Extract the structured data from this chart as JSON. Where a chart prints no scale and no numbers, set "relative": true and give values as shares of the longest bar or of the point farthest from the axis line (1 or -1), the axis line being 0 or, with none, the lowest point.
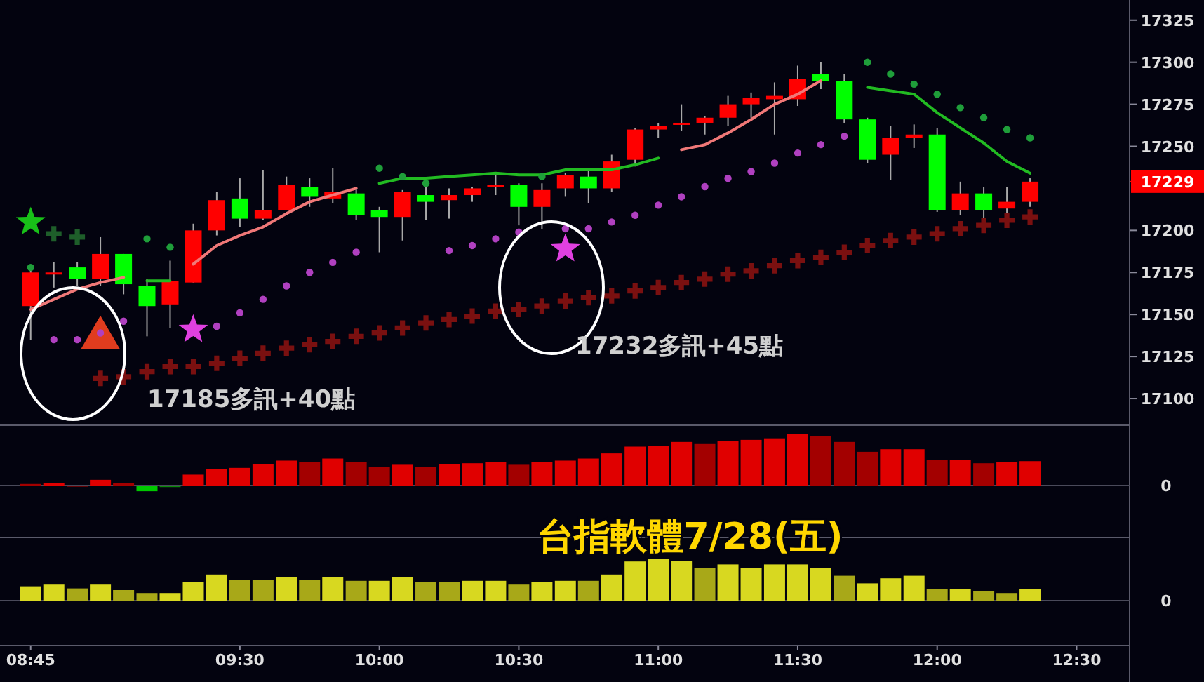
{
  "chart_data": [
    {
      "type": "candlestick",
      "tick_labels": "y",
      "x": [
        8.75,
        8.833,
        8.917,
        9,
        9.083,
        9.167,
        9.25,
        9.333,
        9.417,
        9.5,
        9.583,
        9.667,
        9.75,
        9.833,
        9.917,
        10,
        10.083,
        10.167,
        10.25,
        10.333,
        10.417,
        10.5,
        10.583,
        10.667,
        10.75,
        10.833,
        10.917,
        11,
        11.083,
        11.167,
        11.25,
        11.333,
        11.417,
        11.5,
        11.583,
        11.667,
        11.75,
        11.833,
        11.917,
        12,
        12.083,
        12.167,
        12.25,
        12.333
      ],
      "ohlc": [
        [
          17155,
          17177,
          17135,
          17175
        ],
        [
          17174,
          17181,
          17166,
          17175
        ],
        [
          17178,
          17181,
          17167,
          17171
        ],
        [
          17171,
          17196,
          17167,
          17186
        ],
        [
          17186,
          17186,
          17162,
          17168
        ],
        [
          17167,
          17171,
          17137,
          17155
        ],
        [
          17156,
          17182,
          17142,
          17170
        ],
        [
          17169,
          17204,
          17169,
          17200
        ],
        [
          17200,
          17223,
          17197,
          17218
        ],
        [
          17219,
          17231,
          17202,
          17207
        ],
        [
          17207,
          17236,
          17206,
          17212
        ],
        [
          17212,
          17232,
          17212,
          17227
        ],
        [
          17226,
          17231,
          17214,
          17220
        ],
        [
          17219,
          17237,
          17216,
          17223
        ],
        [
          17222,
          17225,
          17206,
          17209
        ],
        [
          17212,
          17214,
          17187,
          17208
        ],
        [
          17208,
          17224,
          17194,
          17223
        ],
        [
          17221,
          17228,
          17206,
          17217
        ],
        [
          17218,
          17225,
          17207,
          17221
        ],
        [
          17221,
          17226,
          17217,
          17225
        ],
        [
          17226,
          17233,
          17221,
          17227
        ],
        [
          17227,
          17228,
          17203,
          17214
        ],
        [
          17214,
          17228,
          17201,
          17224
        ],
        [
          17225,
          17234,
          17220,
          17233
        ],
        [
          17232,
          17237,
          17216,
          17225
        ],
        [
          17225,
          17245,
          17223,
          17241
        ],
        [
          17242,
          17261,
          17238,
          17260
        ],
        [
          17260,
          17264,
          17255,
          17262
        ],
        [
          17263,
          17275,
          17259,
          17264
        ],
        [
          17264,
          17268,
          17257,
          17267
        ],
        [
          17267,
          17280,
          17262,
          17275
        ],
        [
          17275,
          17282,
          17267,
          17279
        ],
        [
          17278,
          17288,
          17257,
          17280
        ],
        [
          17278,
          17298,
          17274,
          17290
        ],
        [
          17293,
          17300,
          17284,
          17289
        ],
        [
          17289,
          17293,
          17264,
          17266
        ],
        [
          17266,
          17267,
          17240,
          17242
        ],
        [
          17245,
          17262,
          17230,
          17255
        ],
        [
          17255,
          17263,
          17249,
          17257
        ],
        [
          17257,
          17261,
          17211,
          17212
        ],
        [
          17212,
          17229,
          17209,
          17222
        ],
        [
          17222,
          17226,
          17207,
          17212
        ],
        [
          17213,
          17226,
          17209,
          17217
        ],
        [
          17217,
          17231,
          17214,
          17229
        ]
      ],
      "colors": [
        "#ff0000",
        "#ff0000",
        "#00ff00",
        "#ff0000",
        "#00ff00",
        "#00ff00",
        "#ff0000",
        "#ff0000",
        "#ff0000",
        "#00ff00",
        "#ff0000",
        "#ff0000",
        "#00ff00",
        "#ff0000",
        "#00ff00",
        "#00ff00",
        "#ff0000",
        "#00ff00",
        "#ff0000",
        "#ff0000",
        "#ff0000",
        "#00ff00",
        "#ff0000",
        "#ff0000",
        "#00ff00",
        "#ff0000",
        "#ff0000",
        "#ff0000",
        "#ff0000",
        "#ff0000",
        "#ff0000",
        "#ff0000",
        "#ff0000",
        "#ff0000",
        "#00ff00",
        "#00ff00",
        "#00ff00",
        "#ff0000",
        "#ff0000",
        "#00ff00",
        "#ff0000",
        "#00ff00",
        "#ff0000",
        "#ff0000"
      ],
      "series": [
        {
          "type": "line",
          "color": "#f07878",
          "values": [
            17153,
            17159,
            17165,
            17169,
            17172,
            null,
            null,
            17180,
            17191,
            17197,
            17202,
            17210,
            17217,
            17221,
            17225,
            null,
            null,
            null,
            null,
            null,
            null,
            null,
            null,
            null,
            null,
            null,
            null,
            null,
            17248,
            17251,
            17258,
            17266,
            17275,
            17281,
            17289,
            null,
            null,
            null,
            null,
            null,
            null,
            null,
            null,
            null
          ]
        },
        {
          "type": "line",
          "color": "#22bb22",
          "values": [
            null,
            null,
            null,
            null,
            null,
            17170,
            17170,
            null,
            null,
            null,
            null,
            null,
            null,
            null,
            null,
            17228,
            17231,
            17231,
            17232,
            17233,
            17234,
            17233,
            17233,
            17236,
            17236,
            17236,
            17239,
            17243,
            null,
            null,
            null,
            null,
            null,
            null,
            null,
            null,
            17285,
            17283,
            17281,
            17270,
            17261,
            17252,
            17241,
            17234
          ]
        },
        {
          "type": "scatter",
          "marker": "triangle",
          "color": "#e03c1e",
          "x": [
            9
          ],
          "values": [
            17136
          ]
        },
        {
          "type": "scatter",
          "marker": "star",
          "color": "#18c018",
          "x": [
            8.75
          ],
          "values": [
            17205
          ]
        },
        {
          "type": "scatter",
          "marker": "star",
          "color": "#e040e0",
          "x": [
            9.333,
            10.667
          ],
          "values": [
            17141,
            17189
          ]
        },
        {
          "type": "scatter",
          "marker": "circle",
          "color": "#1f9e3a",
          "x": [
            8.75,
            9.167,
            9.25,
            10,
            10.083,
            10.167,
            10.583,
            11.75,
            11.833,
            11.917,
            12,
            12.083,
            12.167,
            12.25,
            12.333
          ],
          "values": [
            17178,
            17195,
            17190,
            17237,
            17232,
            17228,
            17232,
            17300,
            17293,
            17287,
            17281,
            17273,
            17267,
            17260,
            17255
          ]
        },
        {
          "type": "scatter",
          "marker": "cross",
          "color": "#1e5e2a",
          "x": [
            8.833,
            8.917
          ],
          "values": [
            17198,
            17196
          ]
        },
        {
          "type": "scatter",
          "marker": "circle",
          "color": "#b040c0",
          "x": [
            8.833,
            8.917,
            9,
            9.083,
            9.417,
            9.5,
            9.583,
            9.667,
            9.75,
            9.833,
            9.917,
            10.25,
            10.333,
            10.417,
            10.5,
            10.667,
            10.75,
            10.833,
            10.917,
            11,
            11.083,
            11.167,
            11.25,
            11.333,
            11.417,
            11.5,
            11.583,
            11.667
          ],
          "values": [
            17135,
            17135,
            17139,
            17146,
            17143,
            17151,
            17159,
            17167,
            17175,
            17181,
            17187,
            17188,
            17191,
            17195,
            17199,
            17201,
            17201,
            17205,
            17209,
            17215,
            17220,
            17226,
            17231,
            17235,
            17240,
            17246,
            17251,
            17256
          ]
        },
        {
          "type": "scatter",
          "marker": "cross",
          "color": "#7a1010",
          "values": [
            null,
            null,
            null,
            17112,
            17113,
            17116,
            17119,
            17119,
            17121,
            17124,
            17127,
            17130,
            17132,
            17134,
            17137,
            17139,
            17142,
            17145,
            17147,
            17149,
            17152,
            17153,
            17155,
            17158,
            17160,
            17161,
            17164,
            17166,
            17169,
            17171,
            17174,
            17176,
            17179,
            17182,
            17184,
            17187,
            17191,
            17194,
            17196,
            17198,
            17201,
            17203,
            17206,
            17208
          ]
        }
      ],
      "xlim": [
        8.64,
        12.69
      ],
      "ylim": [
        17085,
        17337
      ],
      "yticks": [
        17100,
        17125,
        17150,
        17175,
        17200,
        {
          "value": 17229,
          "label": "17229"
        },
        17250,
        17275,
        17300,
        17325
      ],
      "annotations": [
        "17185多訊+40點",
        "17232多訊+45點"
      ]
    },
    {
      "type": "bar",
      "relative": true,
      "tick_labels": false,
      "annotations": [
        "0"
      ],
      "x": [
        8.75,
        8.833,
        8.917,
        9,
        9.083,
        9.167,
        9.25,
        9.333,
        9.417,
        9.5,
        9.583,
        9.667,
        9.75,
        9.833,
        9.917,
        10,
        10.083,
        10.167,
        10.25,
        10.333,
        10.417,
        10.5,
        10.583,
        10.667,
        10.75,
        10.833,
        10.917,
        11,
        11.083,
        11.167,
        11.25,
        11.333,
        11.417,
        11.5,
        11.583,
        11.667,
        11.75,
        11.833,
        11.917,
        12,
        12.083,
        12.167,
        12.25,
        12.333
      ],
      "xlim": [
        8.64,
        12.69
      ],
      "values": [
        0.03,
        0.05,
        0,
        0.11,
        0.05,
        -0.11,
        -0.03,
        0.21,
        0.32,
        0.34,
        0.41,
        0.48,
        0.45,
        0.52,
        0.45,
        0.36,
        0.4,
        0.36,
        0.41,
        0.43,
        0.45,
        0.4,
        0.45,
        0.48,
        0.52,
        0.62,
        0.75,
        0.77,
        0.84,
        0.8,
        0.86,
        0.88,
        0.91,
        1,
        0.95,
        0.84,
        0.65,
        0.7,
        0.7,
        0.5,
        0.5,
        0.43,
        0.45,
        0.47
      ],
      "colors": [
        "#a30000",
        "#e00000",
        "#a30000",
        "#e00000",
        "#a30000",
        "#00c800",
        "#0a8a0a",
        "#e00000",
        "#e00000",
        "#e00000",
        "#e00000",
        "#e00000",
        "#a30000",
        "#e00000",
        "#a30000",
        "#a30000",
        "#e00000",
        "#a30000",
        "#e00000",
        "#e00000",
        "#e00000",
        "#a30000",
        "#e00000",
        "#e00000",
        "#e00000",
        "#e00000",
        "#e00000",
        "#e00000",
        "#e00000",
        "#a30000",
        "#e00000",
        "#e00000",
        "#e00000",
        "#e00000",
        "#a30000",
        "#a30000",
        "#a30000",
        "#e00000",
        "#e00000",
        "#a30000",
        "#e00000",
        "#a30000",
        "#e00000",
        "#e00000"
      ]
    },
    {
      "type": "bar",
      "relative": true,
      "tick_labels": "x",
      "title": "台指軟體7/28(五)",
      "annotations": [
        "0"
      ],
      "x": [
        8.75,
        8.833,
        8.917,
        9,
        9.083,
        9.167,
        9.25,
        9.333,
        9.417,
        9.5,
        9.583,
        9.667,
        9.75,
        9.833,
        9.917,
        10,
        10.083,
        10.167,
        10.25,
        10.333,
        10.417,
        10.5,
        10.583,
        10.667,
        10.75,
        10.833,
        10.917,
        11,
        11.083,
        11.167,
        11.25,
        11.333,
        11.417,
        11.5,
        11.583,
        11.667,
        11.75,
        11.833,
        11.917,
        12,
        12.083,
        12.167,
        12.25,
        12.333
      ],
      "xlim": [
        8.64,
        12.69
      ],
      "xticks": [
        {
          "value": 8.75,
          "label": "08:45"
        },
        {
          "value": 9.5,
          "label": "09:30"
        },
        {
          "value": 10,
          "label": "10:00"
        },
        {
          "value": 10.5,
          "label": "10:30"
        },
        {
          "value": 11,
          "label": "11:00"
        },
        {
          "value": 11.5,
          "label": "11:30"
        },
        {
          "value": 12,
          "label": "12:00"
        },
        {
          "value": 12.5,
          "label": "12:30"
        }
      ],
      "values": [
        0.34,
        0.38,
        0.29,
        0.38,
        0.25,
        0.18,
        0.18,
        0.45,
        0.62,
        0.5,
        0.5,
        0.56,
        0.5,
        0.55,
        0.47,
        0.47,
        0.55,
        0.44,
        0.44,
        0.47,
        0.47,
        0.38,
        0.45,
        0.47,
        0.47,
        0.62,
        0.93,
        1,
        0.95,
        0.77,
        0.86,
        0.77,
        0.86,
        0.86,
        0.77,
        0.59,
        0.41,
        0.53,
        0.59,
        0.27,
        0.27,
        0.23,
        0.18,
        0.27
      ],
      "colors": [
        "#d8d820",
        "#d8d820",
        "#a8a818",
        "#d8d820",
        "#a8a818",
        "#a8a818",
        "#d8d820",
        "#d8d820",
        "#d8d820",
        "#a8a818",
        "#a8a818",
        "#d8d820",
        "#a8a818",
        "#d8d820",
        "#a8a818",
        "#d8d820",
        "#d8d820",
        "#a8a818",
        "#a8a818",
        "#d8d820",
        "#d8d820",
        "#a8a818",
        "#d8d820",
        "#d8d820",
        "#a8a818",
        "#d8d820",
        "#d8d820",
        "#d8d820",
        "#d8d820",
        "#a8a818",
        "#d8d820",
        "#d8d820",
        "#d8d820",
        "#d8d820",
        "#d8d820",
        "#a8a818",
        "#d8d820",
        "#d8d820",
        "#d8d820",
        "#a8a818",
        "#d8d820",
        "#a8a818",
        "#a8a818",
        "#d8d820"
      ]
    }
  ]
}
